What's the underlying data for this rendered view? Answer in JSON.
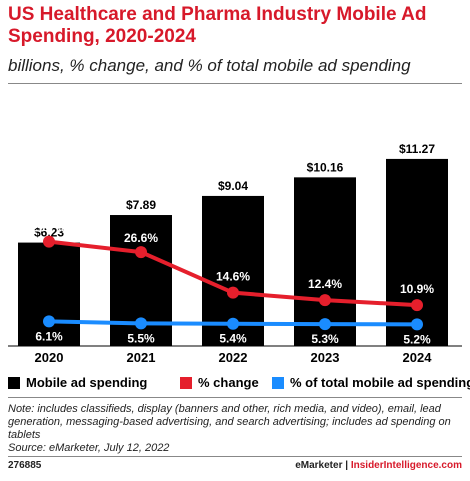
{
  "header": {
    "title": "US Healthcare and Pharma Industry Mobile Ad Spending, 2020-2024",
    "subtitle": "billions, % change, and % of total mobile ad spending"
  },
  "colors": {
    "title": "#d7192a",
    "bars": "#000000",
    "pct_change": "#e51f2c",
    "pct_total": "#1a8cff"
  },
  "chart_data": {
    "type": "bar",
    "categories": [
      "2020",
      "2021",
      "2022",
      "2023",
      "2024"
    ],
    "series": [
      {
        "name": "Mobile ad spending",
        "type": "bar",
        "values": [
          6.23,
          7.89,
          9.04,
          10.16,
          11.27
        ],
        "labels": [
          "$6.23",
          "$7.89",
          "$9.04",
          "$10.16",
          "$11.27"
        ]
      },
      {
        "name": "% change",
        "type": "line",
        "values": [
          29.7,
          26.6,
          14.6,
          12.4,
          10.9
        ],
        "labels": [
          "29.7%",
          "26.6%",
          "14.6%",
          "12.4%",
          "10.9%"
        ]
      },
      {
        "name": "% of total mobile ad spending",
        "type": "line",
        "values": [
          6.1,
          5.5,
          5.4,
          5.3,
          5.2
        ],
        "labels": [
          "6.1%",
          "5.5%",
          "5.4%",
          "5.3%",
          "5.2%"
        ]
      }
    ],
    "legend_position": "bottom",
    "grid": false
  },
  "legend": [
    {
      "label": "Mobile ad spending",
      "color": "#000000"
    },
    {
      "label": "% change",
      "color": "#e51f2c"
    },
    {
      "label": "% of total mobile ad spending",
      "color": "#1a8cff"
    }
  ],
  "note": "Note: includes classifieds, display (banners and other, rich media, and video), email, lead generation, messaging-based advertising, and search advertising; includes ad spending on tablets",
  "source": "Source: eMarketer, July 12, 2022",
  "footer": {
    "chart_id": "276885",
    "brand_left": "eMarketer",
    "separator": "|",
    "brand_right": "InsiderIntelligence.com"
  }
}
